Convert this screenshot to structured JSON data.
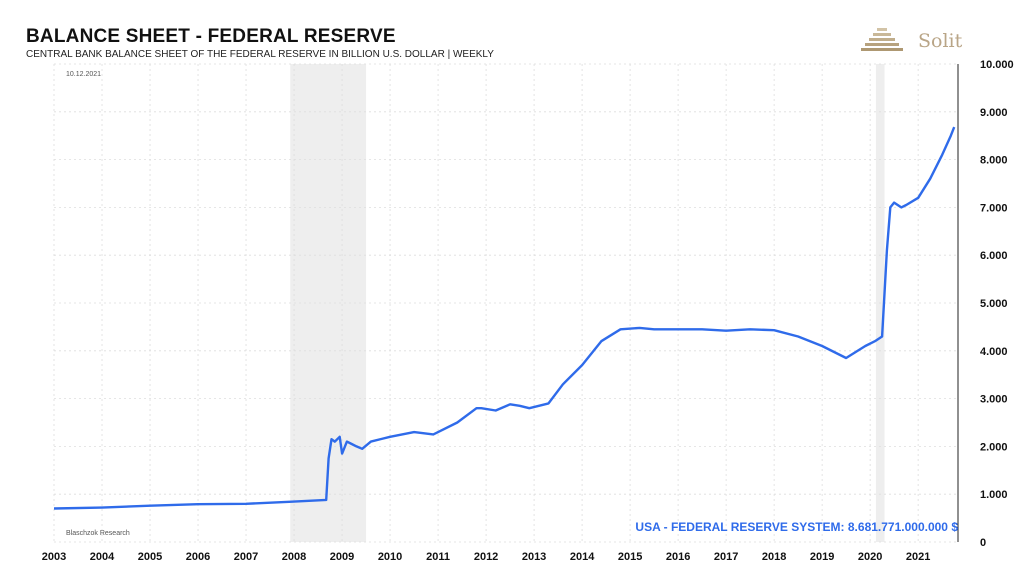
{
  "title": "BALANCE SHEET - FEDERAL RESERVE",
  "subtitle": "CENTRAL BANK BALANCE SHEET OF THE FEDERAL RESERVE IN BILLION U.S. DOLLAR | WEEKLY",
  "date": "10.12.2021",
  "source": "Blaschzok Research",
  "logo": {
    "text": "Solit",
    "color": "#b9a587"
  },
  "annotation": "USA - FEDERAL RESERVE SYSTEM: 8.681.771.000.000 $",
  "colors": {
    "series": "#2f6bea",
    "shade": "#eeeeee",
    "grid": "#dddddd"
  },
  "chart_data": {
    "type": "line",
    "title": "BALANCE SHEET - FEDERAL RESERVE",
    "xlabel": "",
    "ylabel": "",
    "xlim": [
      2003.0,
      2021.83
    ],
    "ylim": [
      0,
      10000
    ],
    "y_ticks": [
      0,
      1000,
      2000,
      3000,
      4000,
      5000,
      6000,
      7000,
      8000,
      9000,
      10000
    ],
    "y_tick_labels": [
      "0",
      "1.000",
      "2.000",
      "3.000",
      "4.000",
      "5.000",
      "6.000",
      "7.000",
      "8.000",
      "9.000",
      "10.000"
    ],
    "x_tick_labels": [
      "2003",
      "2004",
      "2005",
      "2006",
      "2007",
      "2008",
      "2009",
      "2010",
      "2011",
      "2012",
      "2013",
      "2014",
      "2015",
      "2016",
      "2017",
      "2018",
      "2019",
      "2020",
      "2021"
    ],
    "grid": true,
    "shaded_periods": [
      [
        2007.92,
        2009.5
      ],
      [
        2020.12,
        2020.3
      ]
    ],
    "series": [
      {
        "x": [
          2003.0,
          2004.0,
          2005.0,
          2006.0,
          2007.0,
          2007.9,
          2008.67,
          2008.72,
          2008.78,
          2008.85,
          2008.95,
          2009.0,
          2009.1,
          2009.2,
          2009.3,
          2009.42,
          2009.6,
          2010.0,
          2010.5,
          2010.9,
          2011.0,
          2011.4,
          2011.8,
          2011.9,
          2012.2,
          2012.5,
          2012.7,
          2012.9,
          2013.3,
          2013.6,
          2014.0,
          2014.4,
          2014.8,
          2015.2,
          2015.5,
          2016.0,
          2016.5,
          2017.0,
          2017.5,
          2018.0,
          2018.5,
          2019.0,
          2019.5,
          2019.9,
          2020.1,
          2020.25,
          2020.35,
          2020.42,
          2020.5,
          2020.65,
          2020.75,
          2021.0,
          2021.25,
          2021.5,
          2021.68,
          2021.75
        ],
        "values": [
          700,
          720,
          760,
          790,
          800,
          840,
          880,
          1750,
          2150,
          2100,
          2200,
          1850,
          2100,
          2050,
          2000,
          1950,
          2100,
          2200,
          2300,
          2250,
          2300,
          2500,
          2800,
          2800,
          2750,
          2880,
          2850,
          2800,
          2900,
          3300,
          3700,
          4200,
          4450,
          4480,
          4450,
          4450,
          4450,
          4420,
          4450,
          4430,
          4300,
          4100,
          3850,
          4100,
          4200,
          4300,
          6100,
          7000,
          7100,
          7000,
          7050,
          7200,
          7600,
          8100,
          8500,
          8680
        ]
      }
    ]
  }
}
